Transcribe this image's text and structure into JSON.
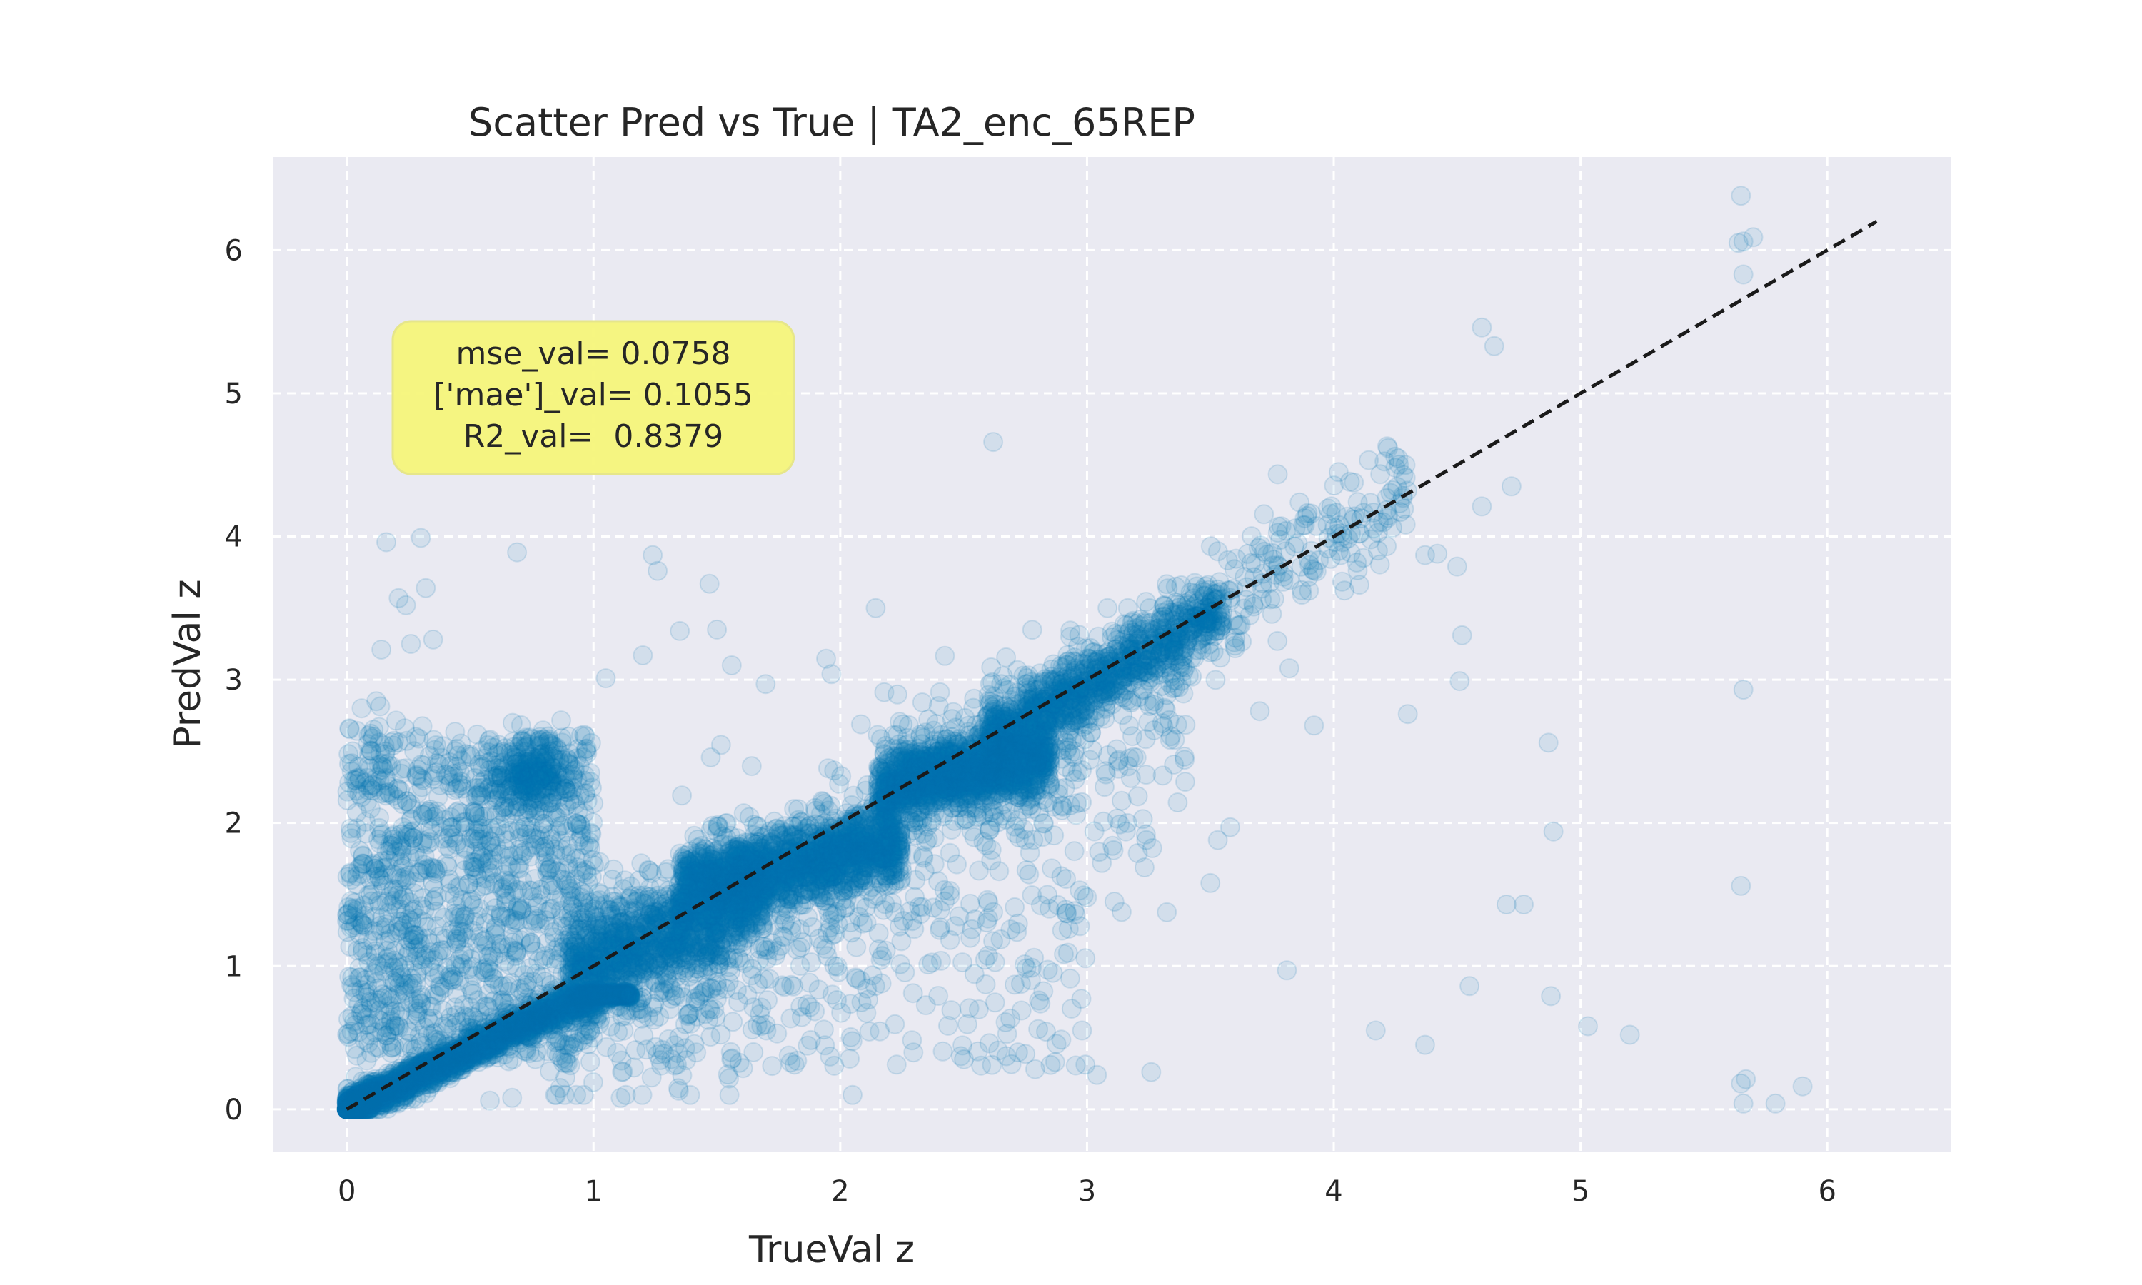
{
  "chart_data": {
    "type": "scatter",
    "title": "Scatter Pred vs True | TA2_enc_65REP",
    "xlabel": "TrueVal z",
    "ylabel": "PredVal z",
    "xlim": [
      -0.3,
      6.5
    ],
    "ylim": [
      -0.3,
      6.65
    ],
    "x_ticks": [
      "0",
      "1",
      "2",
      "3",
      "4",
      "5",
      "6"
    ],
    "y_ticks": [
      "0",
      "1",
      "2",
      "3",
      "4",
      "5",
      "6"
    ],
    "grid": true,
    "point_color": "#0072B2",
    "point_alpha": 0.1,
    "background_color": "#EAEAF2",
    "reference_line": {
      "style": "dashed",
      "color": "#1a1a1a",
      "x": [
        0,
        6.2
      ],
      "y": [
        0,
        6.2
      ]
    },
    "annotation": {
      "lines": [
        "mse_val= 0.0758",
        "['mae']_val= 0.1055",
        "R2_val=  0.8379"
      ],
      "background": "#F5F57A",
      "placement": "upper-left"
    },
    "outliers": [
      [
        5.65,
        6.38
      ],
      [
        5.64,
        6.05
      ],
      [
        5.66,
        6.06
      ],
      [
        5.7,
        6.09
      ],
      [
        5.66,
        5.83
      ],
      [
        4.6,
        5.46
      ],
      [
        4.65,
        5.33
      ],
      [
        2.62,
        4.66
      ],
      [
        5.66,
        2.93
      ],
      [
        5.65,
        1.56
      ],
      [
        5.65,
        0.18
      ],
      [
        5.67,
        0.21
      ],
      [
        5.66,
        0.04
      ],
      [
        5.79,
        0.04
      ],
      [
        5.9,
        0.16
      ],
      [
        4.88,
        0.79
      ],
      [
        5.03,
        0.58
      ],
      [
        5.2,
        0.52
      ],
      [
        4.55,
        0.86
      ],
      [
        4.37,
        0.45
      ],
      [
        4.17,
        0.55
      ],
      [
        4.89,
        1.94
      ],
      [
        4.87,
        2.56
      ],
      [
        4.72,
        4.35
      ],
      [
        4.6,
        4.21
      ],
      [
        4.5,
        3.79
      ],
      [
        4.52,
        3.31
      ],
      [
        4.51,
        2.99
      ],
      [
        4.3,
        2.76
      ],
      [
        4.25,
        4.48
      ],
      [
        4.02,
        4.45
      ],
      [
        3.99,
        4.21
      ],
      [
        3.82,
        3.08
      ],
      [
        3.81,
        0.97
      ],
      [
        3.92,
        2.68
      ],
      [
        3.7,
        2.78
      ],
      [
        0.16,
        3.96
      ],
      [
        0.3,
        3.99
      ],
      [
        0.21,
        3.57
      ],
      [
        0.24,
        3.52
      ],
      [
        0.32,
        3.64
      ],
      [
        0.26,
        3.25
      ],
      [
        0.35,
        3.28
      ],
      [
        0.14,
        3.21
      ],
      [
        0.69,
        3.89
      ],
      [
        1.24,
        3.87
      ],
      [
        1.26,
        3.76
      ],
      [
        1.47,
        3.67
      ],
      [
        1.2,
        3.17
      ],
      [
        1.35,
        3.34
      ],
      [
        1.5,
        3.35
      ],
      [
        1.56,
        3.1
      ],
      [
        1.05,
        3.01
      ],
      [
        2.98,
        0.55
      ],
      [
        3.04,
        0.24
      ],
      [
        3.26,
        0.26
      ],
      [
        2.79,
        0.28
      ],
      [
        2.64,
        0.41
      ],
      [
        1.11,
        0.08
      ],
      [
        0.93,
        0.1
      ],
      [
        0.58,
        0.06
      ],
      [
        0.67,
        0.08
      ],
      [
        3.5,
        1.58
      ],
      [
        3.53,
        1.88
      ],
      [
        3.58,
        1.97
      ],
      [
        3.0,
        1.48
      ],
      [
        3.06,
        1.72
      ],
      [
        3.24,
        1.88
      ],
      [
        4.42,
        3.88
      ],
      [
        4.37,
        3.87
      ],
      [
        4.07,
        4.02
      ],
      [
        4.15,
        3.98
      ],
      [
        4.2,
        4.1
      ],
      [
        4.7,
        1.43
      ],
      [
        4.77,
        1.43
      ],
      [
        0.12,
        2.85
      ],
      [
        0.06,
        2.8
      ],
      [
        0.28,
        2.6
      ],
      [
        0.02,
        2.36
      ],
      [
        0.01,
        2.28
      ]
    ]
  }
}
